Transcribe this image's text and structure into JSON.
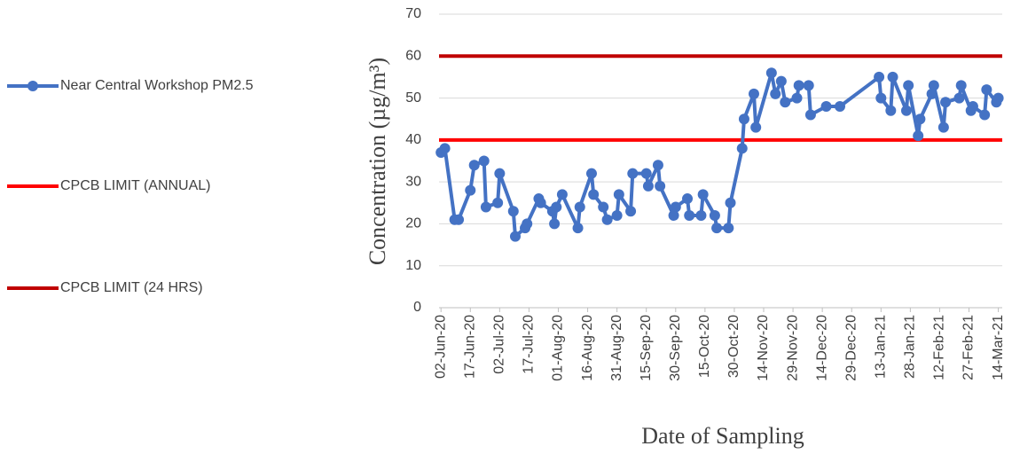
{
  "chart_data": {
    "type": "line",
    "y_axis_label": "Concentration (µg/m³)",
    "x_axis_label": "Date of Sampling",
    "x": [
      "2020-06-02",
      "2020-06-04",
      "2020-06-09",
      "2020-06-11",
      "2020-06-17",
      "2020-06-19",
      "2020-06-24",
      "2020-06-25",
      "2020-07-01",
      "2020-07-02",
      "2020-07-09",
      "2020-07-10",
      "2020-07-15",
      "2020-07-16",
      "2020-07-22",
      "2020-07-23",
      "2020-07-29",
      "2020-07-30",
      "2020-07-31",
      "2020-08-03",
      "2020-08-11",
      "2020-08-12",
      "2020-08-18",
      "2020-08-19",
      "2020-08-24",
      "2020-08-26",
      "2020-08-31",
      "2020-09-01",
      "2020-09-07",
      "2020-09-08",
      "2020-09-15",
      "2020-09-16",
      "2020-09-21",
      "2020-09-22",
      "2020-09-29",
      "2020-09-30",
      "2020-10-06",
      "2020-10-07",
      "2020-10-13",
      "2020-10-14",
      "2020-10-20",
      "2020-10-21",
      "2020-10-27",
      "2020-10-28",
      "2020-11-03",
      "2020-11-04",
      "2020-11-09",
      "2020-11-10",
      "2020-11-18",
      "2020-11-20",
      "2020-11-23",
      "2020-11-25",
      "2020-12-01",
      "2020-12-02",
      "2020-12-07",
      "2020-12-08",
      "2020-12-16",
      "2020-12-23",
      "2021-01-12",
      "2021-01-13",
      "2021-01-18",
      "2021-01-19",
      "2021-01-26",
      "2021-01-27",
      "2021-02-01",
      "2021-02-02",
      "2021-02-08",
      "2021-02-09",
      "2021-02-14",
      "2021-02-15",
      "2021-02-22",
      "2021-02-23",
      "2021-02-28",
      "2021-03-01",
      "2021-03-07",
      "2021-03-08",
      "2021-03-13",
      "2021-03-14"
    ],
    "series": [
      {
        "name": "Near Central Workshop PM2.5",
        "color": "#4472c4",
        "values": [
          37,
          38,
          21,
          21,
          28,
          34,
          35,
          24,
          25,
          32,
          23,
          17,
          19,
          20,
          26,
          25,
          23,
          20,
          24,
          27,
          19,
          24,
          32,
          27,
          24,
          21,
          22,
          27,
          23,
          32,
          32,
          29,
          34,
          29,
          22,
          24,
          26,
          22,
          22,
          27,
          22,
          19,
          19,
          25,
          38,
          45,
          51,
          43,
          56,
          51,
          54,
          49,
          50,
          53,
          53,
          46,
          48,
          48,
          55,
          50,
          47,
          55,
          47,
          53,
          41,
          45,
          51,
          53,
          43,
          49,
          50,
          53,
          47,
          48,
          46,
          52,
          49,
          50
        ]
      }
    ],
    "reference_lines": [
      {
        "name": "CPCB LIMIT (ANNUAL)",
        "color": "#ff0000",
        "value": 40
      },
      {
        "name": "CPCB LIMIT (24 HRS)",
        "color": "#c00000",
        "value": 60
      }
    ],
    "xlim": [
      "2020-06-01",
      "2021-03-16"
    ],
    "xticks": [
      {
        "value": "2020-06-02",
        "label": "02-Jun-20"
      },
      {
        "value": "2020-06-17",
        "label": "17-Jun-20"
      },
      {
        "value": "2020-07-02",
        "label": "02-Jul-20"
      },
      {
        "value": "2020-07-17",
        "label": "17-Jul-20"
      },
      {
        "value": "2020-08-01",
        "label": "01-Aug-20"
      },
      {
        "value": "2020-08-16",
        "label": "16-Aug-20"
      },
      {
        "value": "2020-08-31",
        "label": "31-Aug-20"
      },
      {
        "value": "2020-09-15",
        "label": "15-Sep-20"
      },
      {
        "value": "2020-09-30",
        "label": "30-Sep-20"
      },
      {
        "value": "2020-10-15",
        "label": "15-Oct-20"
      },
      {
        "value": "2020-10-30",
        "label": "30-Oct-20"
      },
      {
        "value": "2020-11-14",
        "label": "14-Nov-20"
      },
      {
        "value": "2020-11-29",
        "label": "29-Nov-20"
      },
      {
        "value": "2020-12-14",
        "label": "14-Dec-20"
      },
      {
        "value": "2020-12-29",
        "label": "29-Dec-20"
      },
      {
        "value": "2021-01-13",
        "label": "13-Jan-21"
      },
      {
        "value": "2021-01-28",
        "label": "28-Jan-21"
      },
      {
        "value": "2021-02-12",
        "label": "12-Feb-21"
      },
      {
        "value": "2021-02-27",
        "label": "27-Feb-21"
      },
      {
        "value": "2021-03-14",
        "label": "14-Mar-21"
      }
    ],
    "ylim": [
      0,
      70
    ],
    "yticks": [
      0,
      10,
      20,
      30,
      40,
      50,
      60,
      70
    ],
    "grid": true,
    "legend": "left"
  }
}
